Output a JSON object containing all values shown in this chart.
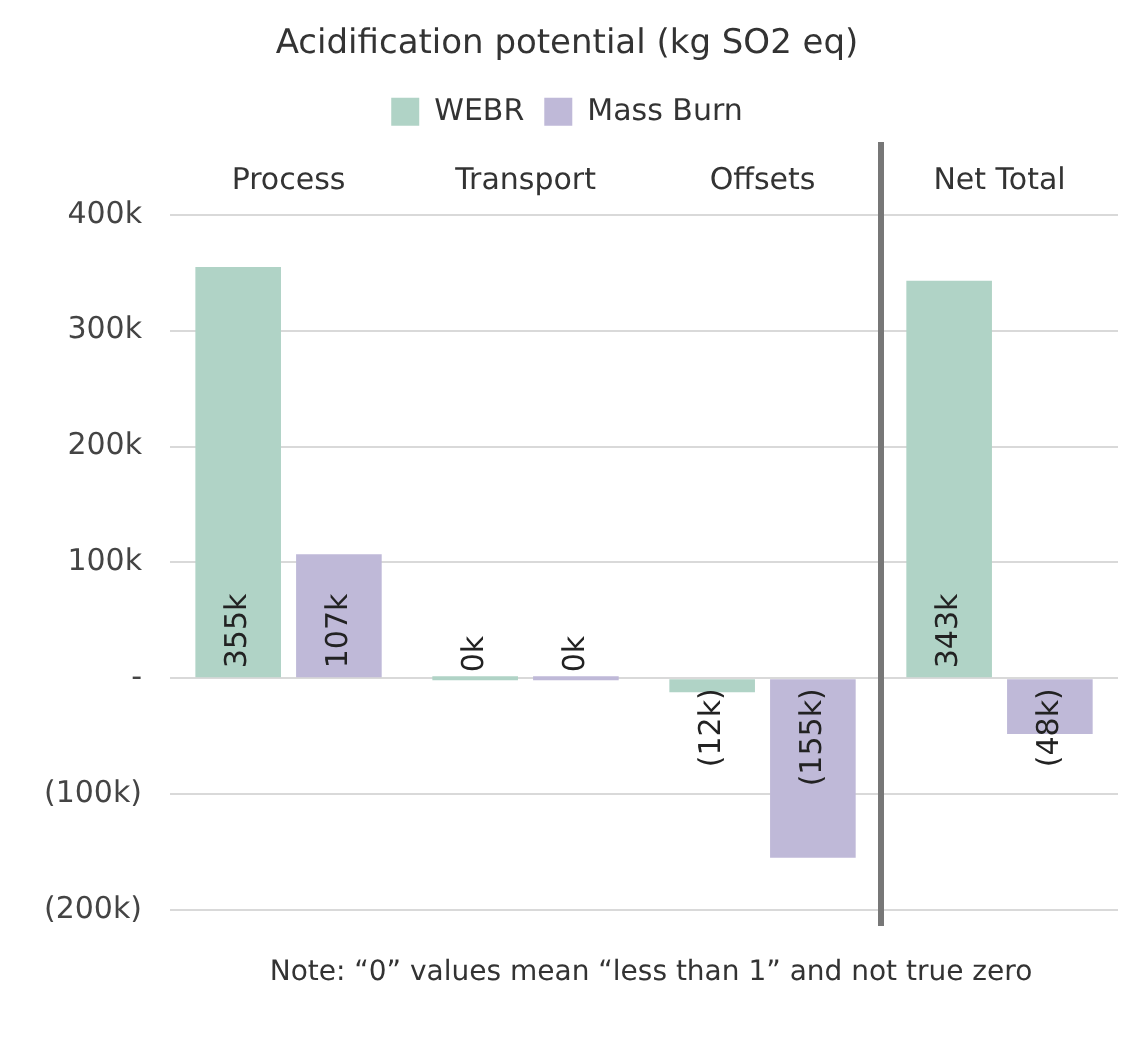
{
  "chart_data": {
    "type": "bar",
    "title": "Acidification potential (kg SO2 eq)",
    "categories": [
      "Process",
      "Transport",
      "Offsets",
      "Net Total"
    ],
    "series": [
      {
        "name": "WEBR",
        "color": "#b0d3c6",
        "values": [
          355000,
          0,
          -12000,
          343000
        ],
        "value_labels": [
          "355k",
          "0k",
          "(12k)",
          "343k"
        ]
      },
      {
        "name": "Mass Burn",
        "color": "#bfb9d8",
        "values": [
          107000,
          0,
          -155000,
          -48000
        ],
        "value_labels": [
          "107k",
          "0k",
          "(155k)",
          "(48k)"
        ]
      }
    ],
    "ylim": [
      -200000,
      400000
    ],
    "yticks": [
      {
        "value": -200000,
        "label": "(200k)"
      },
      {
        "value": -100000,
        "label": "(100k)"
      },
      {
        "value": 0,
        "label": "-"
      },
      {
        "value": 100000,
        "label": "100k"
      },
      {
        "value": 200000,
        "label": "200k"
      },
      {
        "value": 300000,
        "label": "300k"
      },
      {
        "value": 400000,
        "label": "400k"
      }
    ],
    "grid": "y",
    "legend": "top",
    "annotations": [
      "Note: “0” values mean “less than 1” and not true zero"
    ]
  }
}
